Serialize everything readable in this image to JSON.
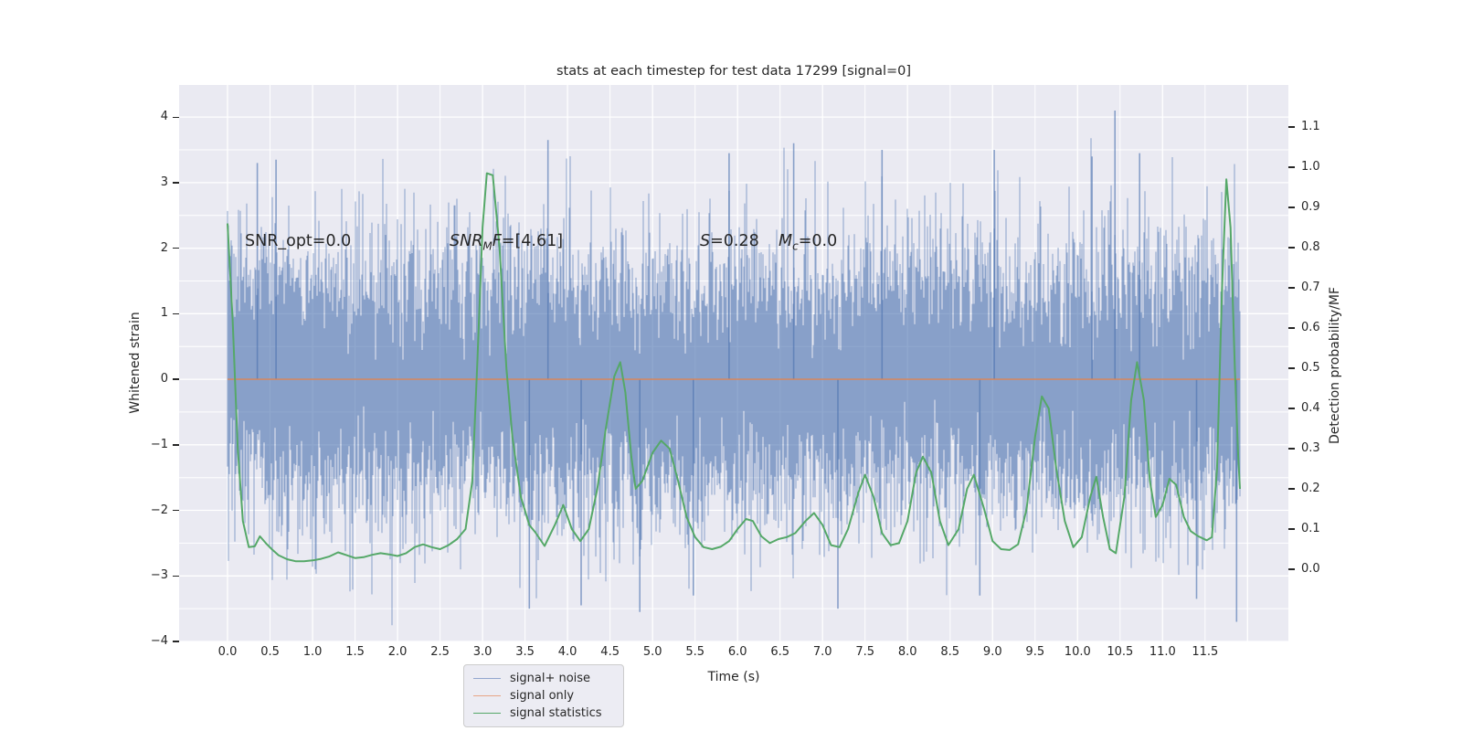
{
  "figure": {
    "title": "stats at each timestep for test data 17299 [signal=0]",
    "xlabel": "Time (s)",
    "ylabel_left": "Whitened strain",
    "ylabel_right": "Detection probability/MF",
    "annotations": {
      "snr_opt": "SNR_opt=0.0",
      "snr_mf": {
        "a": "SNR",
        "sub": "M",
        "b": "F",
        "c": "=[4.61]"
      },
      "s_stat": {
        "a": "S",
        "b": "=0.28"
      },
      "mc": {
        "a": "M",
        "sub": "c",
        "b": "=0.0"
      }
    },
    "legend": [
      "signal+ noise",
      "signal only",
      "signal statistics"
    ]
  },
  "colors": {
    "axes_bg": "#eaeaf2",
    "grid": "#ffffff",
    "noise": "rgba(76,114,176,0.62)",
    "noise_legend": "#92a6cf",
    "signal_only": "rgba(221,132,82,0.85)",
    "signal_only_legend": "#e8a687",
    "stats": "#55a868",
    "text": "#262626"
  },
  "chart_data": {
    "type": "line",
    "title": "stats at each timestep for test data 17299 [signal=0]",
    "xlabel": "Time (s)",
    "ylabel_left": "Whitened strain",
    "ylabel_right": "Detection probability/MF",
    "xlim": [
      -0.57,
      12.48
    ],
    "ylim_left": [
      -4.0,
      4.49
    ],
    "ylim_right": [
      -0.1795,
      1.2045
    ],
    "grid": "white lines every 0.5 s (vertical) and every 0.5 strain units (horizontal)",
    "legend_position": "lower left",
    "x_ticks": [
      0.0,
      0.5,
      1.0,
      1.5,
      2.0,
      2.5,
      3.0,
      3.5,
      4.0,
      4.5,
      5.0,
      5.5,
      6.0,
      6.5,
      7.0,
      7.5,
      8.0,
      8.5,
      9.0,
      9.5,
      10.0,
      10.5,
      11.0,
      11.5
    ],
    "x_tick_labels": [
      "0.0",
      "0.5",
      "1.0",
      "1.5",
      "2.0",
      "2.5",
      "3.0",
      "3.5",
      "4.0",
      "4.5",
      "5.0",
      "5.5",
      "6.0",
      "6.5",
      "7.0",
      "7.5",
      "8.0",
      "8.5",
      "9.0",
      "9.5",
      "10.0",
      "10.5",
      "11.0",
      "11.5"
    ],
    "y_ticks_left": [
      -4,
      -3,
      -2,
      -1,
      0,
      1,
      2,
      3,
      4
    ],
    "y_tick_labels_left": [
      "−4",
      "−3",
      "−2",
      "−1",
      "0",
      "1",
      "2",
      "3",
      "4"
    ],
    "y_ticks_right": [
      0.0,
      0.1,
      0.2,
      0.3,
      0.4,
      0.5,
      0.6,
      0.7,
      0.8,
      0.9,
      1.0,
      1.1
    ],
    "y_tick_labels_right": [
      "0.0",
      "0.1",
      "0.2",
      "0.3",
      "0.4",
      "0.5",
      "0.6",
      "0.7",
      "0.8",
      "0.9",
      "1.0",
      "1.1"
    ],
    "series": [
      {
        "name": "signal+ noise",
        "axis": "left",
        "kind": "noise_band",
        "description": "whitened unit-variance Gaussian noise, ~5 min/max samples per pixel column, dense core ±1.5, fuzz to ±2.5, spikes to ±4",
        "seed": 13,
        "samples_per_column": 12,
        "sigma": 1.0,
        "clip": 3.85,
        "t_range": [
          0,
          11.91
        ],
        "extra_spikes": [
          [
            10.44,
            4.1
          ],
          [
            3.77,
            3.65
          ],
          [
            6.66,
            3.6
          ],
          [
            7.7,
            3.5
          ],
          [
            0.35,
            3.3
          ],
          [
            0.57,
            3.35
          ],
          [
            5.9,
            3.45
          ],
          [
            9.02,
            3.5
          ],
          [
            10.17,
            3.4
          ],
          [
            10.73,
            3.45
          ],
          [
            11.87,
            -3.7
          ],
          [
            3.55,
            -3.5
          ],
          [
            7.18,
            -3.5
          ],
          [
            5.48,
            -3.3
          ],
          [
            11.4,
            -3.35
          ],
          [
            8.85,
            -3.3
          ],
          [
            4.16,
            -3.45
          ],
          [
            4.85,
            -3.55
          ]
        ]
      },
      {
        "name": "signal only",
        "axis": "left",
        "kind": "line",
        "points": [
          [
            0,
            0.0
          ],
          [
            11.91,
            0.0
          ]
        ]
      },
      {
        "name": "signal statistics",
        "axis": "right",
        "kind": "line",
        "points": [
          [
            0.0,
            0.86
          ],
          [
            0.06,
            0.62
          ],
          [
            0.12,
            0.3
          ],
          [
            0.18,
            0.12
          ],
          [
            0.25,
            0.055
          ],
          [
            0.32,
            0.057
          ],
          [
            0.38,
            0.082
          ],
          [
            0.45,
            0.065
          ],
          [
            0.52,
            0.05
          ],
          [
            0.6,
            0.035
          ],
          [
            0.7,
            0.025
          ],
          [
            0.8,
            0.02
          ],
          [
            0.9,
            0.02
          ],
          [
            1.0,
            0.022
          ],
          [
            1.1,
            0.026
          ],
          [
            1.2,
            0.032
          ],
          [
            1.3,
            0.042
          ],
          [
            1.4,
            0.035
          ],
          [
            1.5,
            0.028
          ],
          [
            1.6,
            0.03
          ],
          [
            1.7,
            0.036
          ],
          [
            1.8,
            0.04
          ],
          [
            1.9,
            0.037
          ],
          [
            2.0,
            0.033
          ],
          [
            2.1,
            0.04
          ],
          [
            2.2,
            0.055
          ],
          [
            2.3,
            0.062
          ],
          [
            2.4,
            0.055
          ],
          [
            2.5,
            0.05
          ],
          [
            2.6,
            0.06
          ],
          [
            2.7,
            0.075
          ],
          [
            2.8,
            0.1
          ],
          [
            2.88,
            0.22
          ],
          [
            2.94,
            0.52
          ],
          [
            3.0,
            0.85
          ],
          [
            3.05,
            0.985
          ],
          [
            3.12,
            0.98
          ],
          [
            3.2,
            0.8
          ],
          [
            3.28,
            0.5
          ],
          [
            3.35,
            0.33
          ],
          [
            3.45,
            0.18
          ],
          [
            3.55,
            0.11
          ],
          [
            3.62,
            0.092
          ],
          [
            3.73,
            0.058
          ],
          [
            3.85,
            0.11
          ],
          [
            3.95,
            0.16
          ],
          [
            4.05,
            0.1
          ],
          [
            4.15,
            0.07
          ],
          [
            4.25,
            0.1
          ],
          [
            4.35,
            0.2
          ],
          [
            4.45,
            0.35
          ],
          [
            4.55,
            0.48
          ],
          [
            4.62,
            0.515
          ],
          [
            4.68,
            0.44
          ],
          [
            4.75,
            0.28
          ],
          [
            4.8,
            0.2
          ],
          [
            4.88,
            0.22
          ],
          [
            5.0,
            0.29
          ],
          [
            5.1,
            0.32
          ],
          [
            5.2,
            0.3
          ],
          [
            5.3,
            0.22
          ],
          [
            5.4,
            0.13
          ],
          [
            5.5,
            0.08
          ],
          [
            5.6,
            0.055
          ],
          [
            5.7,
            0.05
          ],
          [
            5.8,
            0.056
          ],
          [
            5.9,
            0.07
          ],
          [
            6.0,
            0.1
          ],
          [
            6.1,
            0.125
          ],
          [
            6.18,
            0.12
          ],
          [
            6.28,
            0.082
          ],
          [
            6.38,
            0.065
          ],
          [
            6.48,
            0.075
          ],
          [
            6.58,
            0.08
          ],
          [
            6.68,
            0.09
          ],
          [
            6.8,
            0.12
          ],
          [
            6.9,
            0.14
          ],
          [
            7.0,
            0.11
          ],
          [
            7.1,
            0.06
          ],
          [
            7.2,
            0.055
          ],
          [
            7.3,
            0.1
          ],
          [
            7.42,
            0.19
          ],
          [
            7.5,
            0.235
          ],
          [
            7.6,
            0.18
          ],
          [
            7.7,
            0.09
          ],
          [
            7.8,
            0.06
          ],
          [
            7.9,
            0.065
          ],
          [
            8.0,
            0.12
          ],
          [
            8.1,
            0.24
          ],
          [
            8.18,
            0.28
          ],
          [
            8.28,
            0.24
          ],
          [
            8.38,
            0.12
          ],
          [
            8.48,
            0.06
          ],
          [
            8.6,
            0.1
          ],
          [
            8.7,
            0.2
          ],
          [
            8.78,
            0.235
          ],
          [
            8.9,
            0.15
          ],
          [
            9.0,
            0.07
          ],
          [
            9.1,
            0.05
          ],
          [
            9.2,
            0.048
          ],
          [
            9.3,
            0.062
          ],
          [
            9.4,
            0.15
          ],
          [
            9.5,
            0.33
          ],
          [
            9.58,
            0.43
          ],
          [
            9.66,
            0.4
          ],
          [
            9.75,
            0.25
          ],
          [
            9.85,
            0.12
          ],
          [
            9.95,
            0.055
          ],
          [
            10.05,
            0.08
          ],
          [
            10.15,
            0.18
          ],
          [
            10.22,
            0.23
          ],
          [
            10.3,
            0.13
          ],
          [
            10.38,
            0.05
          ],
          [
            10.45,
            0.04
          ],
          [
            10.55,
            0.18
          ],
          [
            10.63,
            0.42
          ],
          [
            10.7,
            0.515
          ],
          [
            10.78,
            0.42
          ],
          [
            10.85,
            0.22
          ],
          [
            10.92,
            0.13
          ],
          [
            11.0,
            0.16
          ],
          [
            11.08,
            0.225
          ],
          [
            11.16,
            0.21
          ],
          [
            11.25,
            0.13
          ],
          [
            11.33,
            0.095
          ],
          [
            11.42,
            0.082
          ],
          [
            11.52,
            0.072
          ],
          [
            11.58,
            0.08
          ],
          [
            11.64,
            0.25
          ],
          [
            11.7,
            0.7
          ],
          [
            11.75,
            0.97
          ],
          [
            11.8,
            0.85
          ],
          [
            11.85,
            0.5
          ],
          [
            11.89,
            0.28
          ],
          [
            11.91,
            0.2
          ]
        ]
      }
    ]
  }
}
